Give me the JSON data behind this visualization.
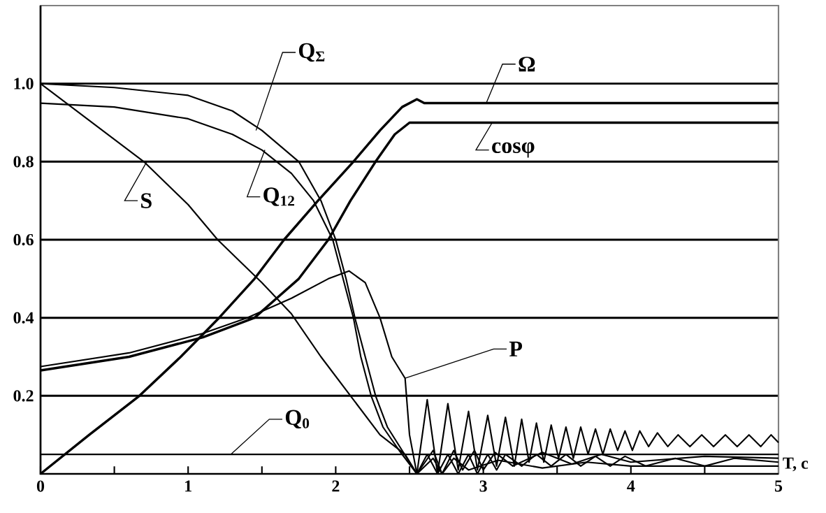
{
  "chart_data": {
    "type": "line",
    "xlabel": "T, c",
    "xlim": [
      0,
      5
    ],
    "ylim": [
      0,
      1.2
    ],
    "xticks": [
      0,
      {
        "value": 0.5,
        "label": null
      },
      1,
      {
        "value": 1.5,
        "label": null
      },
      2,
      {
        "value": 2.5,
        "label": null
      },
      3,
      {
        "value": 3.5,
        "label": null
      },
      4,
      {
        "value": 4.5,
        "label": null
      },
      5
    ],
    "yticks": [
      0.2,
      0.4,
      0.6,
      0.8,
      {
        "value": 1,
        "label": "1.0"
      }
    ],
    "grid": "y",
    "marker": "none",
    "line_style": "solid",
    "series": [
      {
        "color": "#000000",
        "x": [
          0,
          0.5,
          1.0,
          1.3,
          1.5,
          1.75,
          1.9,
          2.0,
          2.07,
          2.13,
          2.2,
          2.27,
          2.35,
          2.45,
          2.55,
          2.66,
          2.72,
          2.8,
          2.86,
          2.94,
          3.0,
          3.08,
          3.2,
          3.4,
          3.6,
          3.8,
          4.0,
          4.5,
          5.0
        ],
        "values": [
          1.0,
          0.99,
          0.97,
          0.93,
          0.88,
          0.8,
          0.7,
          0.6,
          0.5,
          0.4,
          0.3,
          0.2,
          0.12,
          0.06,
          0.0,
          0.06,
          0.0,
          0.06,
          0.01,
          0.06,
          0.01,
          0.055,
          0.02,
          0.055,
          0.025,
          0.05,
          0.03,
          0.045,
          0.04
        ]
      },
      {
        "color": "#000000",
        "x": [
          0,
          0.5,
          1.0,
          1.3,
          1.5,
          1.7,
          1.85,
          1.98,
          2.05,
          2.12,
          2.17,
          2.24,
          2.32,
          2.43,
          2.55,
          2.66,
          2.72,
          2.8,
          2.9,
          3.1,
          3.4,
          3.7,
          4.0,
          5.0
        ],
        "values": [
          0.95,
          0.94,
          0.91,
          0.87,
          0.83,
          0.77,
          0.7,
          0.6,
          0.5,
          0.4,
          0.3,
          0.2,
          0.12,
          0.06,
          0.0,
          0.04,
          0.0,
          0.04,
          0.01,
          0.035,
          0.015,
          0.03,
          0.02,
          0.02
        ]
      },
      {
        "color": "#000000",
        "x": [
          0,
          0.35,
          0.7,
          1.0,
          1.2,
          1.5,
          1.7,
          1.9,
          2.1,
          2.3,
          2.47,
          2.55,
          2.62,
          2.69,
          2.76,
          2.83,
          2.9,
          2.96,
          3.03,
          3.09,
          3.15,
          3.26,
          3.36,
          3.46,
          3.56,
          3.66,
          3.76,
          3.86,
          3.96,
          4.1,
          4.3,
          4.5,
          4.7,
          5.0
        ],
        "values": [
          1.0,
          0.9,
          0.8,
          0.69,
          0.6,
          0.49,
          0.41,
          0.3,
          0.2,
          0.1,
          0.05,
          0.0,
          0.05,
          0.0,
          0.05,
          0.0,
          0.05,
          0.0,
          0.05,
          0.01,
          0.05,
          0.02,
          0.05,
          0.02,
          0.05,
          0.02,
          0.045,
          0.02,
          0.045,
          0.02,
          0.04,
          0.02,
          0.04,
          0.03
        ]
      },
      {
        "color": "#000000",
        "x": [
          0,
          5
        ],
        "values": [
          0.05,
          0.05
        ]
      },
      {
        "color": "#000000",
        "x": [
          0,
          0.33,
          0.67,
          0.95,
          1.21,
          1.45,
          1.65,
          1.88,
          2.12,
          2.3,
          2.45,
          2.55,
          2.6,
          5.0
        ],
        "values": [
          0.0,
          0.1,
          0.2,
          0.3,
          0.4,
          0.5,
          0.6,
          0.7,
          0.8,
          0.88,
          0.94,
          0.96,
          0.95,
          0.95
        ]
      },
      {
        "color": "#000000",
        "x": [
          0,
          0.6,
          1.1,
          1.45,
          1.6,
          1.75,
          1.95,
          2.1,
          2.27,
          2.4,
          2.5,
          5.0
        ],
        "values": [
          0.265,
          0.3,
          0.35,
          0.4,
          0.45,
          0.5,
          0.6,
          0.7,
          0.8,
          0.87,
          0.9,
          0.9
        ]
      },
      {
        "color": "#000000",
        "x": [
          0,
          0.6,
          1.1,
          1.4,
          1.7,
          1.95,
          2.09,
          2.2,
          2.3,
          2.38,
          2.47,
          2.5,
          2.55,
          2.62,
          2.69,
          2.76,
          2.83,
          2.9,
          2.96,
          3.03,
          3.09,
          3.15,
          3.21,
          3.26,
          3.31,
          3.36,
          3.41,
          3.46,
          3.51,
          3.56,
          3.61,
          3.66,
          3.71,
          3.76,
          3.81,
          3.86,
          3.91,
          3.96,
          4.01,
          4.06,
          4.12,
          4.18,
          4.25,
          4.32,
          4.4,
          4.48,
          4.56,
          4.64,
          4.72,
          4.8,
          4.88,
          4.95,
          5.0
        ],
        "values": [
          0.275,
          0.31,
          0.36,
          0.4,
          0.45,
          0.5,
          0.52,
          0.49,
          0.4,
          0.3,
          0.245,
          0.1,
          0.0,
          0.19,
          0.0,
          0.18,
          0.01,
          0.16,
          0.01,
          0.15,
          0.02,
          0.145,
          0.02,
          0.14,
          0.03,
          0.13,
          0.03,
          0.125,
          0.04,
          0.12,
          0.04,
          0.12,
          0.05,
          0.115,
          0.05,
          0.115,
          0.06,
          0.11,
          0.06,
          0.11,
          0.07,
          0.105,
          0.07,
          0.1,
          0.07,
          0.1,
          0.07,
          0.1,
          0.07,
          0.1,
          0.07,
          0.1,
          0.08
        ]
      }
    ],
    "annotations": [
      {
        "text": "Q$_{Σ}$",
        "x": 1.46,
        "y": 0.88
      },
      {
        "text": "Q$_{12}$",
        "x": 1.52,
        "y": 0.83
      },
      {
        "text": "S",
        "x": 0.72,
        "y": 0.8
      },
      {
        "text": "Q$_{0}$",
        "x": 1.29,
        "y": 0.05
      },
      {
        "text": "Ω",
        "x": 3.02,
        "y": 0.95
      },
      {
        "text": "cosφ",
        "x": 3.06,
        "y": 0.9
      },
      {
        "text": "P",
        "x": 2.47,
        "y": 0.245
      }
    ]
  }
}
